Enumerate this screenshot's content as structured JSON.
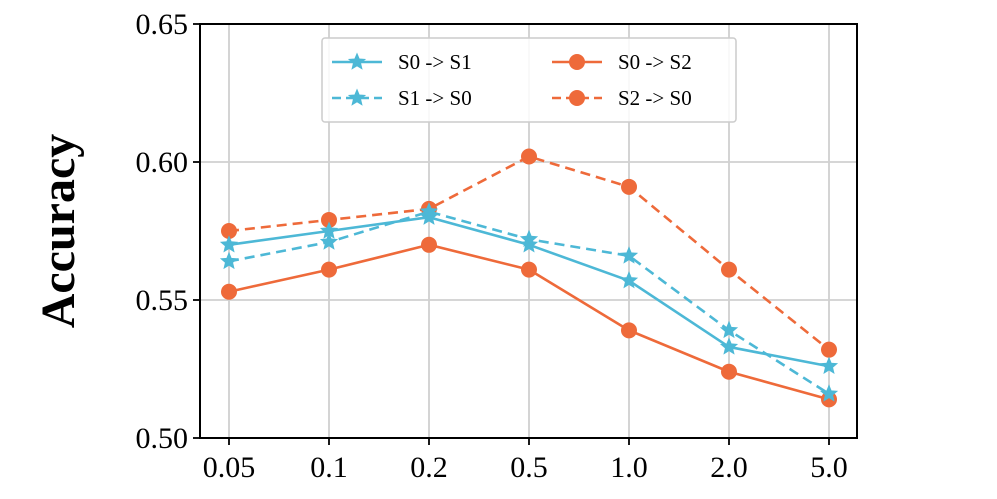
{
  "chart_data": {
    "type": "line",
    "title": "",
    "xlabel": "",
    "ylabel": "Accuracy",
    "categories": [
      "0.05",
      "0.1",
      "0.2",
      "0.5",
      "1.0",
      "2.0",
      "5.0"
    ],
    "ylim": [
      0.5,
      0.65
    ],
    "yticks": [
      "0.50",
      "0.55",
      "0.60",
      "0.65"
    ],
    "grid": true,
    "legend_position": "top-center",
    "series": [
      {
        "name": "S0 -> S1",
        "color": "#4db8d6",
        "linestyle": "solid",
        "marker": "star",
        "values": [
          0.57,
          0.575,
          0.58,
          0.57,
          0.557,
          0.533,
          0.526
        ]
      },
      {
        "name": "S1 -> S0",
        "color": "#4db8d6",
        "linestyle": "dashed",
        "marker": "star",
        "values": [
          0.564,
          0.571,
          0.582,
          0.572,
          0.566,
          0.539,
          0.516
        ]
      },
      {
        "name": "S0 -> S2",
        "color": "#ee6a3a",
        "linestyle": "solid",
        "marker": "circle",
        "values": [
          0.553,
          0.561,
          0.57,
          0.561,
          0.539,
          0.524,
          0.514
        ]
      },
      {
        "name": "S2 -> S0",
        "color": "#ee6a3a",
        "linestyle": "dashed",
        "marker": "circle",
        "values": [
          0.575,
          0.579,
          0.583,
          0.602,
          0.591,
          0.561,
          0.532
        ]
      }
    ]
  }
}
